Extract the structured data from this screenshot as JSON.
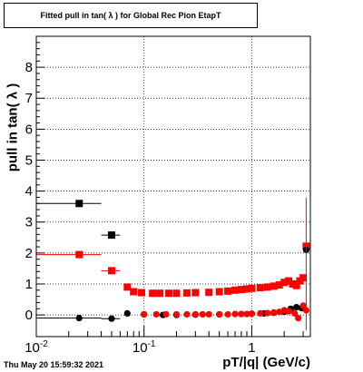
{
  "chart_data": {
    "type": "scatter",
    "title": "Fitted pull in tan( λ ) for Global Rec Pion EtapT",
    "xlabel": "pT/|q| (GeV/c)",
    "ylabel": "pull in tan( λ )",
    "xscale": "log",
    "xlim": [
      0.01,
      3.5
    ],
    "ylim": [
      -0.7,
      9.0
    ],
    "grid": true,
    "y_ticks": [
      0,
      1,
      2,
      3,
      4,
      5,
      6,
      7,
      8
    ],
    "x_ticks": [
      {
        "value": 0.01,
        "label": "10",
        "sup": "-2"
      },
      {
        "value": 0.1,
        "label": "10",
        "sup": "-1"
      },
      {
        "value": 1,
        "label": "1",
        "sup": ""
      }
    ],
    "timestamp": "Thu May 20 15:59:32 2021",
    "series": [
      {
        "color": "#000000",
        "marker": "square",
        "points": [
          {
            "x": 0.025,
            "y": 3.6,
            "xerr": [
              0.01,
              0.04
            ]
          },
          {
            "x": 0.05,
            "y": 2.58,
            "xerr": [
              0.04,
              0.06
            ]
          }
        ]
      },
      {
        "color": "#ff0000",
        "marker": "square",
        "points": [
          {
            "x": 0.025,
            "y": 1.95,
            "xerr": [
              0.01,
              0.04
            ]
          },
          {
            "x": 0.05,
            "y": 1.43,
            "xerr": [
              0.04,
              0.06
            ]
          },
          {
            "x": 0.07,
            "y": 0.9
          },
          {
            "x": 0.08,
            "y": 0.75
          },
          {
            "x": 0.095,
            "y": 0.72
          },
          {
            "x": 0.12,
            "y": 0.7
          },
          {
            "x": 0.14,
            "y": 0.7
          },
          {
            "x": 0.17,
            "y": 0.7
          },
          {
            "x": 0.2,
            "y": 0.7
          },
          {
            "x": 0.25,
            "y": 0.71
          },
          {
            "x": 0.3,
            "y": 0.72
          },
          {
            "x": 0.4,
            "y": 0.73
          },
          {
            "x": 0.5,
            "y": 0.75
          },
          {
            "x": 0.6,
            "y": 0.77
          },
          {
            "x": 0.7,
            "y": 0.8
          },
          {
            "x": 0.8,
            "y": 0.82
          },
          {
            "x": 0.9,
            "y": 0.84
          },
          {
            "x": 1.0,
            "y": 0.86
          },
          {
            "x": 1.2,
            "y": 0.88
          },
          {
            "x": 1.4,
            "y": 0.9
          },
          {
            "x": 1.6,
            "y": 0.93
          },
          {
            "x": 1.8,
            "y": 0.97
          },
          {
            "x": 2.0,
            "y": 1.05
          },
          {
            "x": 2.2,
            "y": 1.1
          },
          {
            "x": 2.4,
            "y": 1.0
          },
          {
            "x": 2.6,
            "y": 0.95
          },
          {
            "x": 2.8,
            "y": 1.1
          },
          {
            "x": 3.0,
            "y": 1.2
          },
          {
            "x": 3.2,
            "y": 2.22
          }
        ]
      },
      {
        "color": "#000000",
        "marker": "circle",
        "points": [
          {
            "x": 0.025,
            "y": -0.1,
            "xerr": [
              0.01,
              0.04
            ]
          },
          {
            "x": 0.05,
            "y": -0.12,
            "xerr": [
              0.04,
              0.06
            ]
          },
          {
            "x": 0.07,
            "y": 0.05
          },
          {
            "x": 0.1,
            "y": 0.02
          },
          {
            "x": 0.15,
            "y": 0.0
          },
          {
            "x": 0.2,
            "y": 0.0
          },
          {
            "x": 0.3,
            "y": 0.01
          },
          {
            "x": 0.5,
            "y": 0.02
          },
          {
            "x": 0.8,
            "y": 0.03
          },
          {
            "x": 1.0,
            "y": 0.04
          },
          {
            "x": 1.3,
            "y": 0.05
          },
          {
            "x": 1.6,
            "y": 0.07
          },
          {
            "x": 2.0,
            "y": 0.1
          },
          {
            "x": 2.3,
            "y": 0.2
          },
          {
            "x": 2.6,
            "y": 0.25
          },
          {
            "x": 2.9,
            "y": 0.22
          },
          {
            "x": 3.2,
            "y": 2.1
          }
        ]
      },
      {
        "color": "#ff0000",
        "marker": "circle",
        "points": [
          {
            "x": 0.1,
            "y": 0.02
          },
          {
            "x": 0.13,
            "y": 0.02
          },
          {
            "x": 0.16,
            "y": 0.02
          },
          {
            "x": 0.2,
            "y": 0.02
          },
          {
            "x": 0.25,
            "y": 0.02
          },
          {
            "x": 0.3,
            "y": 0.02
          },
          {
            "x": 0.35,
            "y": 0.02
          },
          {
            "x": 0.4,
            "y": 0.02
          },
          {
            "x": 0.5,
            "y": 0.02
          },
          {
            "x": 0.6,
            "y": 0.02
          },
          {
            "x": 0.7,
            "y": 0.03
          },
          {
            "x": 0.8,
            "y": 0.03
          },
          {
            "x": 0.9,
            "y": 0.03
          },
          {
            "x": 1.0,
            "y": 0.04
          },
          {
            "x": 1.2,
            "y": 0.05
          },
          {
            "x": 1.4,
            "y": 0.06
          },
          {
            "x": 1.6,
            "y": 0.08
          },
          {
            "x": 1.8,
            "y": 0.1
          },
          {
            "x": 2.0,
            "y": 0.15
          },
          {
            "x": 2.2,
            "y": 0.12
          },
          {
            "x": 2.5,
            "y": 0.05
          },
          {
            "x": 2.7,
            "y": -0.1
          },
          {
            "x": 3.0,
            "y": 0.3
          },
          {
            "x": 3.2,
            "y": 0.15
          }
        ]
      }
    ]
  }
}
